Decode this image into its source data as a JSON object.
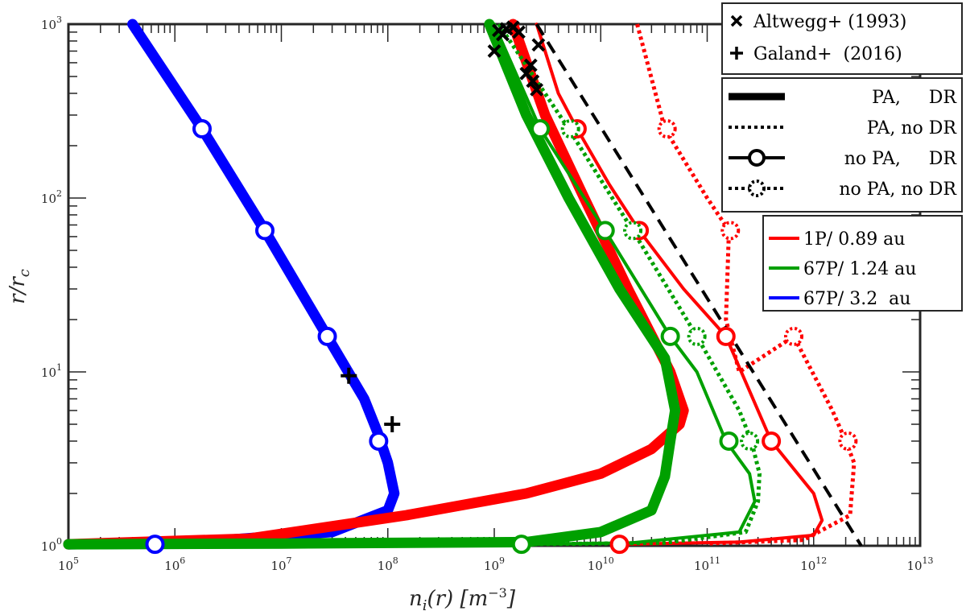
{
  "chart_data": {
    "type": "line",
    "xscale": "log",
    "yscale": "log",
    "xlim": [
      100000,
      10000000000000
    ],
    "ylim": [
      1,
      1000
    ],
    "xlabel": "n_i(r) [m^-3]",
    "ylabel": "r/r_c",
    "x_ticks": [
      {
        "base": "10",
        "exp": "5"
      },
      {
        "base": "10",
        "exp": "6"
      },
      {
        "base": "10",
        "exp": "7"
      },
      {
        "base": "10",
        "exp": "8"
      },
      {
        "base": "10",
        "exp": "9"
      },
      {
        "base": "10",
        "exp": "10"
      },
      {
        "base": "10",
        "exp": "11"
      },
      {
        "base": "10",
        "exp": "12"
      },
      {
        "base": "10",
        "exp": "13"
      }
    ],
    "y_ticks": [
      {
        "base": "10",
        "exp": "0"
      },
      {
        "base": "10",
        "exp": "1"
      },
      {
        "base": "10",
        "exp": "2"
      },
      {
        "base": "10",
        "exp": "3"
      }
    ],
    "grid": false,
    "legend_placement": "outside-right",
    "legend_data": [
      {
        "marker": "x",
        "label": "Altwegg+ (1993)"
      },
      {
        "marker": "+",
        "label": "Galand+  (2016)"
      }
    ],
    "legend_styles": [
      {
        "style": "thick-solid",
        "label": "PA,     DR"
      },
      {
        "style": "dotted",
        "label": "PA, no DR"
      },
      {
        "style": "solid-circle",
        "label": "no PA,     DR"
      },
      {
        "style": "dotted-circle",
        "label": "no PA, no DR"
      }
    ],
    "legend_comets": [
      {
        "color": "#ff0000",
        "label": "1P/ 0.89 au"
      },
      {
        "color": "#00a000",
        "label": "67P/ 1.24 au"
      },
      {
        "color": "#0000ff",
        "label": "67P/ 3.2  au"
      }
    ],
    "series": [
      {
        "color": "#0000ff",
        "style": "thick-solid",
        "points": [
          [
            400000,
            1000
          ],
          [
            1800000,
            250
          ],
          [
            7000000,
            65
          ],
          [
            27000000,
            16
          ],
          [
            60000000,
            7
          ],
          [
            80000000,
            4.5
          ],
          [
            100000000,
            3
          ],
          [
            115000000,
            2
          ],
          [
            100000000,
            1.6
          ],
          [
            30000000,
            1.2
          ],
          [
            2000000,
            1.06
          ],
          [
            500000,
            1.03
          ],
          [
            100000,
            1.02
          ]
        ]
      },
      {
        "color": "#0000ff",
        "style": "solid-circle",
        "points": [
          [
            400000,
            1000
          ],
          [
            1800000,
            250
          ],
          [
            7000000,
            65
          ],
          [
            27000000,
            16
          ],
          [
            60000000,
            7
          ],
          [
            80000000,
            4.5
          ],
          [
            100000000,
            3
          ],
          [
            115000000,
            2
          ],
          [
            100000000,
            1.6
          ],
          [
            30000000,
            1.2
          ],
          [
            2000000,
            1.06
          ],
          [
            650000,
            1.02
          ]
        ],
        "markers": [
          [
            1800000,
            250
          ],
          [
            7000000,
            65
          ],
          [
            27000000,
            16
          ],
          [
            82000000,
            4
          ],
          [
            650000,
            1.02
          ]
        ]
      },
      {
        "color": "#ff0000",
        "style": "thick-solid",
        "points": [
          [
            1500000000,
            1000
          ],
          [
            3000000000,
            300
          ],
          [
            7000000000,
            100
          ],
          [
            18000000000,
            30
          ],
          [
            45000000000,
            10
          ],
          [
            60000000000,
            6
          ],
          [
            55000000000,
            5
          ],
          [
            30000000000,
            3.6
          ],
          [
            10000000000,
            2.6
          ],
          [
            2000000000,
            2
          ],
          [
            150000000,
            1.5
          ],
          [
            5000000,
            1.1
          ],
          [
            100000,
            1.02
          ]
        ]
      },
      {
        "color": "#ff0000",
        "style": "dotted",
        "points": [
          [
            1500000000,
            1000
          ],
          [
            3000000000,
            300
          ],
          [
            7000000000,
            100
          ],
          [
            18000000000,
            30
          ],
          [
            45000000000,
            10
          ],
          [
            60000000000,
            6
          ],
          [
            55000000000,
            5
          ],
          [
            30000000000,
            3.6
          ],
          [
            10000000000,
            2.6
          ],
          [
            2000000000,
            2
          ],
          [
            150000000,
            1.5
          ],
          [
            5000000,
            1.1
          ],
          [
            100000,
            1.02
          ]
        ]
      },
      {
        "color": "#ff0000",
        "style": "solid-circle",
        "points": [
          [
            2500000000,
            1000
          ],
          [
            4000000000,
            400
          ],
          [
            6000000000,
            250
          ],
          [
            12000000000,
            120
          ],
          [
            23000000000,
            65
          ],
          [
            60000000000,
            30
          ],
          [
            150000000000,
            16
          ],
          [
            400000000000,
            4
          ],
          [
            1000000000000,
            2
          ],
          [
            1200000000000,
            1.4
          ],
          [
            1000000000000,
            1.15
          ],
          [
            200000000000,
            1.05
          ],
          [
            15000000000,
            1.02
          ]
        ],
        "markers": [
          [
            6000000000,
            250
          ],
          [
            23000000000,
            65
          ],
          [
            150000000000,
            16
          ],
          [
            400000000000,
            4
          ],
          [
            15000000000,
            1.02
          ]
        ]
      },
      {
        "color": "#ff0000",
        "style": "dotted-circle",
        "points": [
          [
            22000000000,
            1000
          ],
          [
            40000000000,
            250
          ],
          [
            100000000000,
            100
          ],
          [
            160000000000,
            65
          ],
          [
            150000000000,
            20
          ],
          [
            200000000000,
            10
          ],
          [
            650000000000,
            16
          ],
          [
            1500000000000,
            6
          ],
          [
            2000000000000,
            4
          ],
          [
            2400000000000,
            3
          ],
          [
            2200000000000,
            1.5
          ],
          [
            800000000000,
            1.08
          ],
          [
            100000000000,
            1.03
          ]
        ],
        "markers": [
          [
            42000000000,
            250
          ],
          [
            165000000000,
            65
          ],
          [
            650000000000,
            16
          ],
          [
            2100000000000,
            4
          ]
        ]
      },
      {
        "color": "#00a000",
        "style": "thick-solid",
        "points": [
          [
            900000000,
            1000
          ],
          [
            2000000000,
            300
          ],
          [
            5000000000,
            100
          ],
          [
            15000000000,
            30
          ],
          [
            40000000000,
            12
          ],
          [
            50000000000,
            6
          ],
          [
            45000000000,
            4
          ],
          [
            40000000000,
            2.5
          ],
          [
            30000000000,
            1.6
          ],
          [
            10000000000,
            1.2
          ],
          [
            2000000000,
            1.05
          ],
          [
            10000000,
            1.03
          ],
          [
            100000,
            1.02
          ]
        ]
      },
      {
        "color": "#00a000",
        "style": "dotted",
        "points": [
          [
            900000000,
            1000
          ],
          [
            2000000000,
            300
          ],
          [
            5000000000,
            100
          ],
          [
            15000000000,
            30
          ],
          [
            40000000000,
            12
          ],
          [
            52000000000,
            6
          ],
          [
            47000000000,
            4
          ],
          [
            42000000000,
            2.5
          ],
          [
            32000000000,
            1.6
          ],
          [
            11000000000,
            1.2
          ],
          [
            2000000000,
            1.05
          ],
          [
            10000000,
            1.03
          ],
          [
            100000,
            1.02
          ]
        ]
      },
      {
        "color": "#00a000",
        "style": "solid-circle",
        "points": [
          [
            1000000000,
            1000
          ],
          [
            2700000000,
            250
          ],
          [
            11000000000,
            65
          ],
          [
            45000000000,
            16
          ],
          [
            80000000000,
            10
          ],
          [
            150000000000,
            4
          ],
          [
            250000000000,
            2.6
          ],
          [
            280000000000,
            1.8
          ],
          [
            200000000000,
            1.2
          ],
          [
            20000000000,
            1.04
          ],
          [
            1800000000,
            1.02
          ]
        ],
        "markers": [
          [
            2700000000,
            250
          ],
          [
            11000000000,
            65
          ],
          [
            45000000000,
            16
          ],
          [
            160000000000,
            4
          ],
          [
            1800000000,
            1.02
          ]
        ]
      },
      {
        "color": "#00a000",
        "style": "dotted-circle",
        "points": [
          [
            1100000000,
            1000
          ],
          [
            5000000000,
            250
          ],
          [
            20000000000,
            65
          ],
          [
            80000000000,
            16
          ],
          [
            200000000000,
            6
          ],
          [
            260000000000,
            4
          ],
          [
            310000000000,
            2.6
          ],
          [
            300000000000,
            1.8
          ],
          [
            230000000000,
            1.2
          ],
          [
            40000000000,
            1.04
          ],
          [
            2000000000,
            1.02
          ]
        ],
        "markers": [
          [
            5200000000,
            250
          ],
          [
            20000000000,
            65
          ],
          [
            80000000000,
            16
          ],
          [
            250000000000,
            4
          ]
        ]
      },
      {
        "color": "#000000",
        "style": "dashed",
        "points": [
          [
            2500000000,
            1000
          ],
          [
            2800000000000,
            1
          ]
        ]
      }
    ],
    "scatter_altwegg": [
      [
        1100000000,
        920
      ],
      [
        1200000000,
        870
      ],
      [
        1300000000,
        940
      ],
      [
        1500000000,
        960
      ],
      [
        1700000000,
        900
      ],
      [
        2600000000,
        760
      ],
      [
        1000000000,
        700
      ],
      [
        2200000000,
        580
      ],
      [
        2000000000,
        520
      ],
      [
        2300000000,
        470
      ],
      [
        2500000000,
        420
      ]
    ],
    "scatter_galand": [
      [
        43000000,
        9.5
      ],
      [
        110000000,
        5
      ]
    ]
  }
}
